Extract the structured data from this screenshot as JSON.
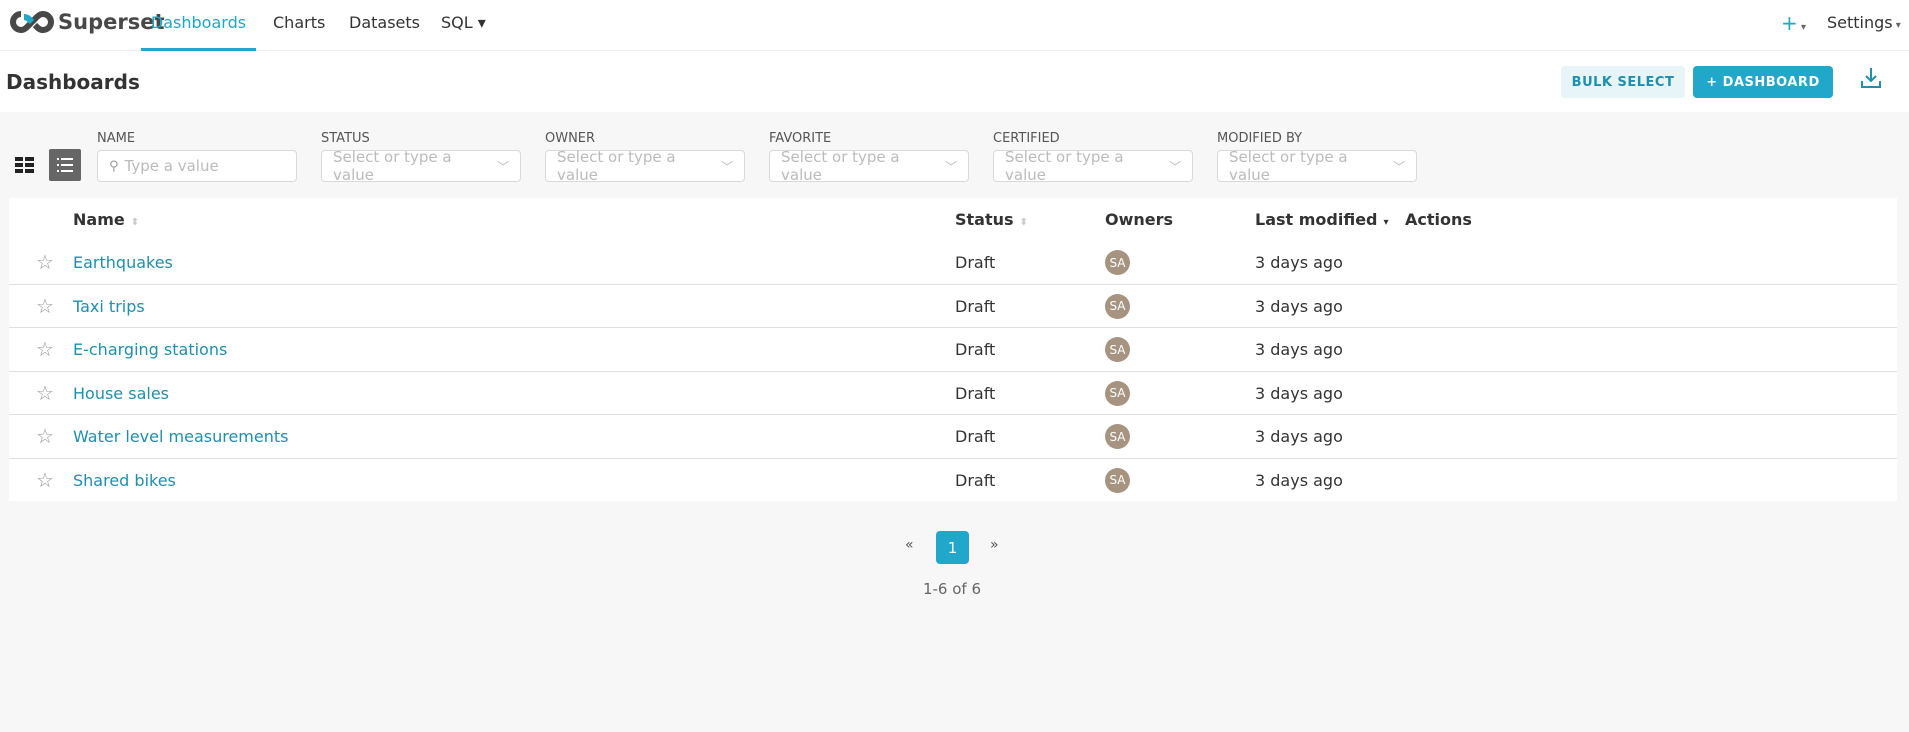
{
  "brand": {
    "name": "Superset"
  },
  "nav": {
    "tabs": [
      {
        "label": "Dashboards",
        "active": true
      },
      {
        "label": "Charts"
      },
      {
        "label": "Datasets"
      },
      {
        "label": "SQL ▾"
      }
    ],
    "plus": "+",
    "settings": "Settings"
  },
  "page": {
    "title": "Dashboards",
    "bulk_select": "BULK SELECT",
    "add_dashboard": "+  DASHBOARD"
  },
  "filters": [
    {
      "label": "NAME",
      "placeholder": "Type a value"
    },
    {
      "label": "STATUS",
      "placeholder": "Select or type a value"
    },
    {
      "label": "OWNER",
      "placeholder": "Select or type a value"
    },
    {
      "label": "FAVORITE",
      "placeholder": "Select or type a value"
    },
    {
      "label": "CERTIFIED",
      "placeholder": "Select or type a value"
    },
    {
      "label": "MODIFIED BY",
      "placeholder": "Select or type a value"
    }
  ],
  "table": {
    "columns": [
      "Name",
      "Status",
      "Owners",
      "Last modified",
      "Actions"
    ],
    "rows": [
      {
        "name": "Earthquakes",
        "status": "Draft",
        "owner": "SA",
        "modified": "3 days ago"
      },
      {
        "name": "Taxi trips",
        "status": "Draft",
        "owner": "SA",
        "modified": "3 days ago"
      },
      {
        "name": "E-charging stations",
        "status": "Draft",
        "owner": "SA",
        "modified": "3 days ago"
      },
      {
        "name": "House sales",
        "status": "Draft",
        "owner": "SA",
        "modified": "3 days ago"
      },
      {
        "name": "Water level measurements",
        "status": "Draft",
        "owner": "SA",
        "modified": "3 days ago"
      },
      {
        "name": "Shared bikes",
        "status": "Draft",
        "owner": "SA",
        "modified": "3 days ago"
      }
    ]
  },
  "pagination": {
    "prev": "«",
    "current": "1",
    "next": "»",
    "summary": "1-6 of 6"
  },
  "colors": {
    "accent": "#20a7c9",
    "avatar": "#a69380",
    "link": "#1f8fad"
  }
}
